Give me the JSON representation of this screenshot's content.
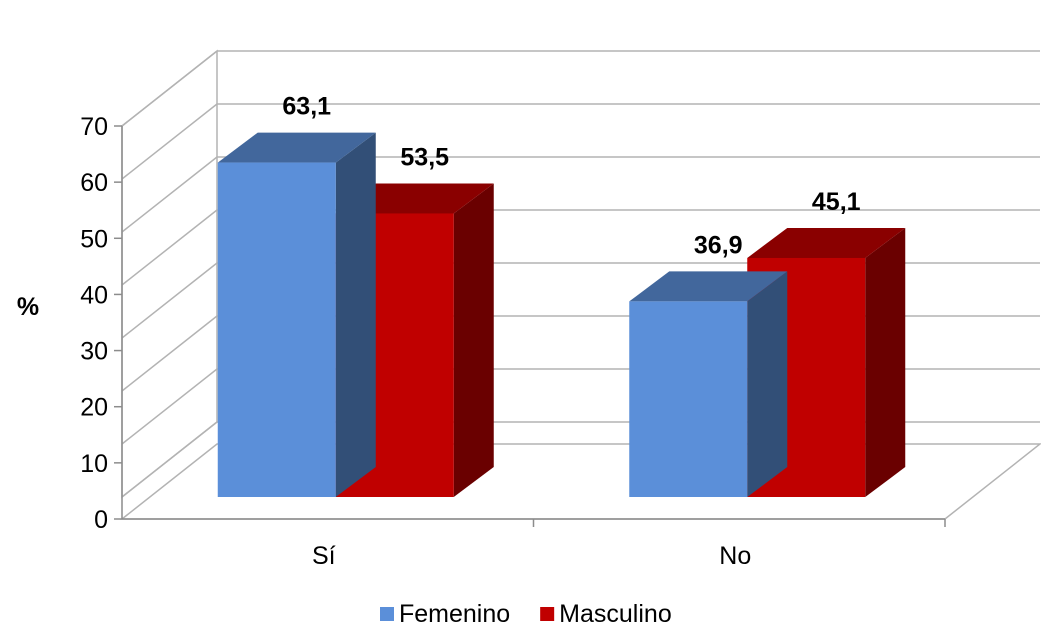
{
  "chart_data": {
    "type": "bar",
    "categories": [
      "Sí",
      "No"
    ],
    "series": [
      {
        "name": "Femenino",
        "values": [
          63.1,
          36.9
        ],
        "value_labels": [
          "63,1",
          "36,9"
        ],
        "color": "#5B8FD9"
      },
      {
        "name": "Masculino",
        "values": [
          53.5,
          45.1
        ],
        "value_labels": [
          "53,5",
          "45,1"
        ],
        "color": "#C00000"
      }
    ],
    "title": "",
    "xlabel": "",
    "ylabel": "%",
    "ylim": [
      0,
      70
    ],
    "yticks": [
      "0",
      "10",
      "20",
      "30",
      "40",
      "50",
      "60",
      "70"
    ],
    "grid": true,
    "legend_position": "bottom",
    "style": "3d-clustered-column"
  }
}
